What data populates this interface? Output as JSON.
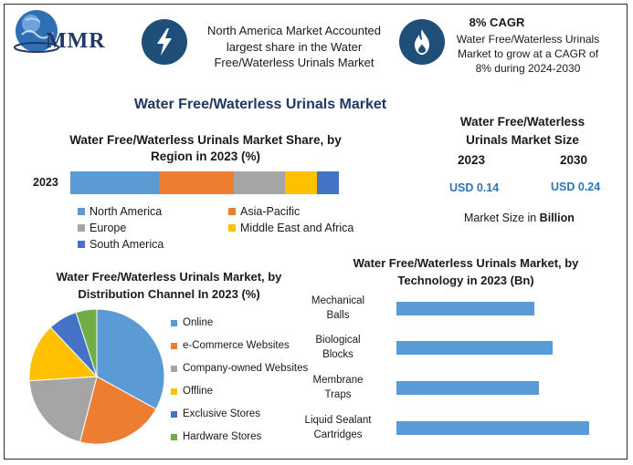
{
  "logo": {
    "text": "MMR"
  },
  "header": {
    "box1_text": "North America Market Accounted largest share in the Water Free/Waterless Urinals Market",
    "box2_title": "8% CAGR",
    "box2_text": "Water Free/Waterless Urinals Market to grow at a CAGR of 8% during 2024-2030",
    "icon1": "lightning-icon",
    "icon2": "flame-icon"
  },
  "main_title": "Water Free/Waterless Urinals Market",
  "market_size": {
    "title": "Water Free/Waterless Urinals Market Size",
    "year1": "2023",
    "year2": "2030",
    "value1": "USD 0.14",
    "value2": "USD 0.24",
    "note_prefix": "Market Size in ",
    "note_unit": "Billion"
  },
  "colors": {
    "north_america": "#5b9bd5",
    "asia_pacific": "#ed7d31",
    "europe": "#a5a5a5",
    "mea": "#ffc000",
    "south_america": "#4472c4",
    "hardware": "#70ad47",
    "bar": "#5b9bd5",
    "icon_circle": "#1f4e79"
  },
  "chart_data": [
    {
      "type": "bar",
      "orientation": "horizontal-stacked",
      "title": "Water Free/Waterless Urinals Market Share, by Region in 2023 (%)",
      "categories": [
        "2023"
      ],
      "series": [
        {
          "name": "North America",
          "values": [
            33
          ]
        },
        {
          "name": "Asia-Pacific",
          "values": [
            28
          ]
        },
        {
          "name": "Europe",
          "values": [
            19
          ]
        },
        {
          "name": "Middle East and Africa",
          "values": [
            12
          ]
        },
        {
          "name": "South America",
          "values": [
            8
          ]
        }
      ],
      "legend": "bottom"
    },
    {
      "type": "pie",
      "title": "Water Free/Waterless Urinals Market, by Distribution Channel In 2023 (%)",
      "labels": [
        "Online",
        "e-Commerce Websites",
        "Company-owned Websites",
        "Offline",
        "Exclusive Stores",
        "Hardware Stores"
      ],
      "values": [
        33,
        21,
        20,
        14,
        7,
        5
      ],
      "legend": "right"
    },
    {
      "type": "bar",
      "orientation": "horizontal",
      "title": "Water Free/Waterless Urinals Market, by Technology in 2023 (Bn)",
      "categories": [
        "Mechanical Balls",
        "Biological Blocks",
        "Membrane Traps",
        "Liquid Sealant Cartridges"
      ],
      "category_lines": [
        [
          "Mechanical",
          "Balls"
        ],
        [
          "Biological",
          "Blocks"
        ],
        [
          "Membrane",
          "Traps"
        ],
        [
          "Liquid Sealant",
          "Cartridges"
        ]
      ],
      "values": [
        0.03,
        0.034,
        0.031,
        0.042
      ],
      "xlim": [
        0,
        0.045
      ]
    }
  ]
}
